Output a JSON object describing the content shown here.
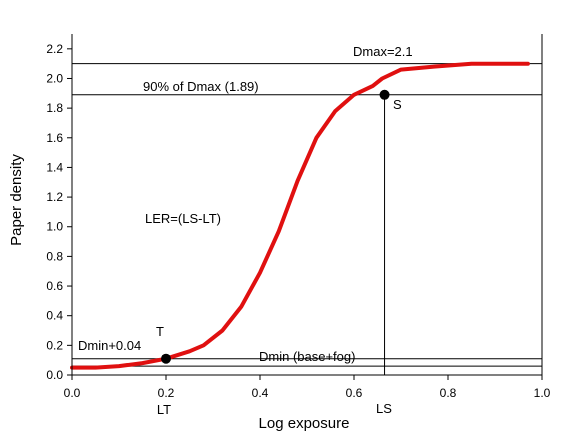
{
  "chart_data": {
    "type": "line",
    "xlabel": "Log exposure",
    "ylabel": "Paper density",
    "xlim": [
      0,
      1.0
    ],
    "ylim": [
      0,
      2.3
    ],
    "x_ticks": [
      "0.0",
      "0.2",
      "0.4",
      "0.6",
      "0.8",
      "1.0"
    ],
    "y_ticks": [
      "0.0",
      "0.2",
      "0.4",
      "0.6",
      "0.8",
      "1.0",
      "1.2",
      "1.4",
      "1.6",
      "1.8",
      "2.0",
      "2.2"
    ],
    "series": [
      {
        "color": "#e01010",
        "x": [
          0.0,
          0.05,
          0.1,
          0.15,
          0.2,
          0.25,
          0.28,
          0.32,
          0.36,
          0.4,
          0.44,
          0.48,
          0.52,
          0.56,
          0.6,
          0.64,
          0.66,
          0.7,
          0.77,
          0.85,
          0.92,
          0.97
        ],
        "y": [
          0.05,
          0.05,
          0.06,
          0.08,
          0.11,
          0.16,
          0.2,
          0.3,
          0.46,
          0.69,
          0.97,
          1.31,
          1.6,
          1.78,
          1.89,
          1.95,
          2.0,
          2.06,
          2.08,
          2.1,
          2.1,
          2.1
        ]
      }
    ],
    "reference_lines": [
      {
        "orientation": "horizontal",
        "y": 2.1
      },
      {
        "orientation": "horizontal",
        "y": 1.89
      },
      {
        "orientation": "horizontal",
        "y": 0.11
      },
      {
        "orientation": "horizontal",
        "y": 0.06
      },
      {
        "orientation": "vertical",
        "x": 0.665,
        "y_top": 1.89
      }
    ],
    "points": [
      {
        "label": "S",
        "x": 0.665,
        "y": 1.89
      },
      {
        "label": "T",
        "x": 0.2,
        "y": 0.11
      }
    ],
    "annotations": {
      "dmax": "Dmax=2.1",
      "ninety": "90% of Dmax (1.89)",
      "ler": "LER=(LS-LT)",
      "dmin04": "Dmin+0.04",
      "dmin": "Dmin (base+fog)",
      "s": "S",
      "t": "T",
      "lt": "LT",
      "ls": "LS"
    },
    "grid": false
  }
}
